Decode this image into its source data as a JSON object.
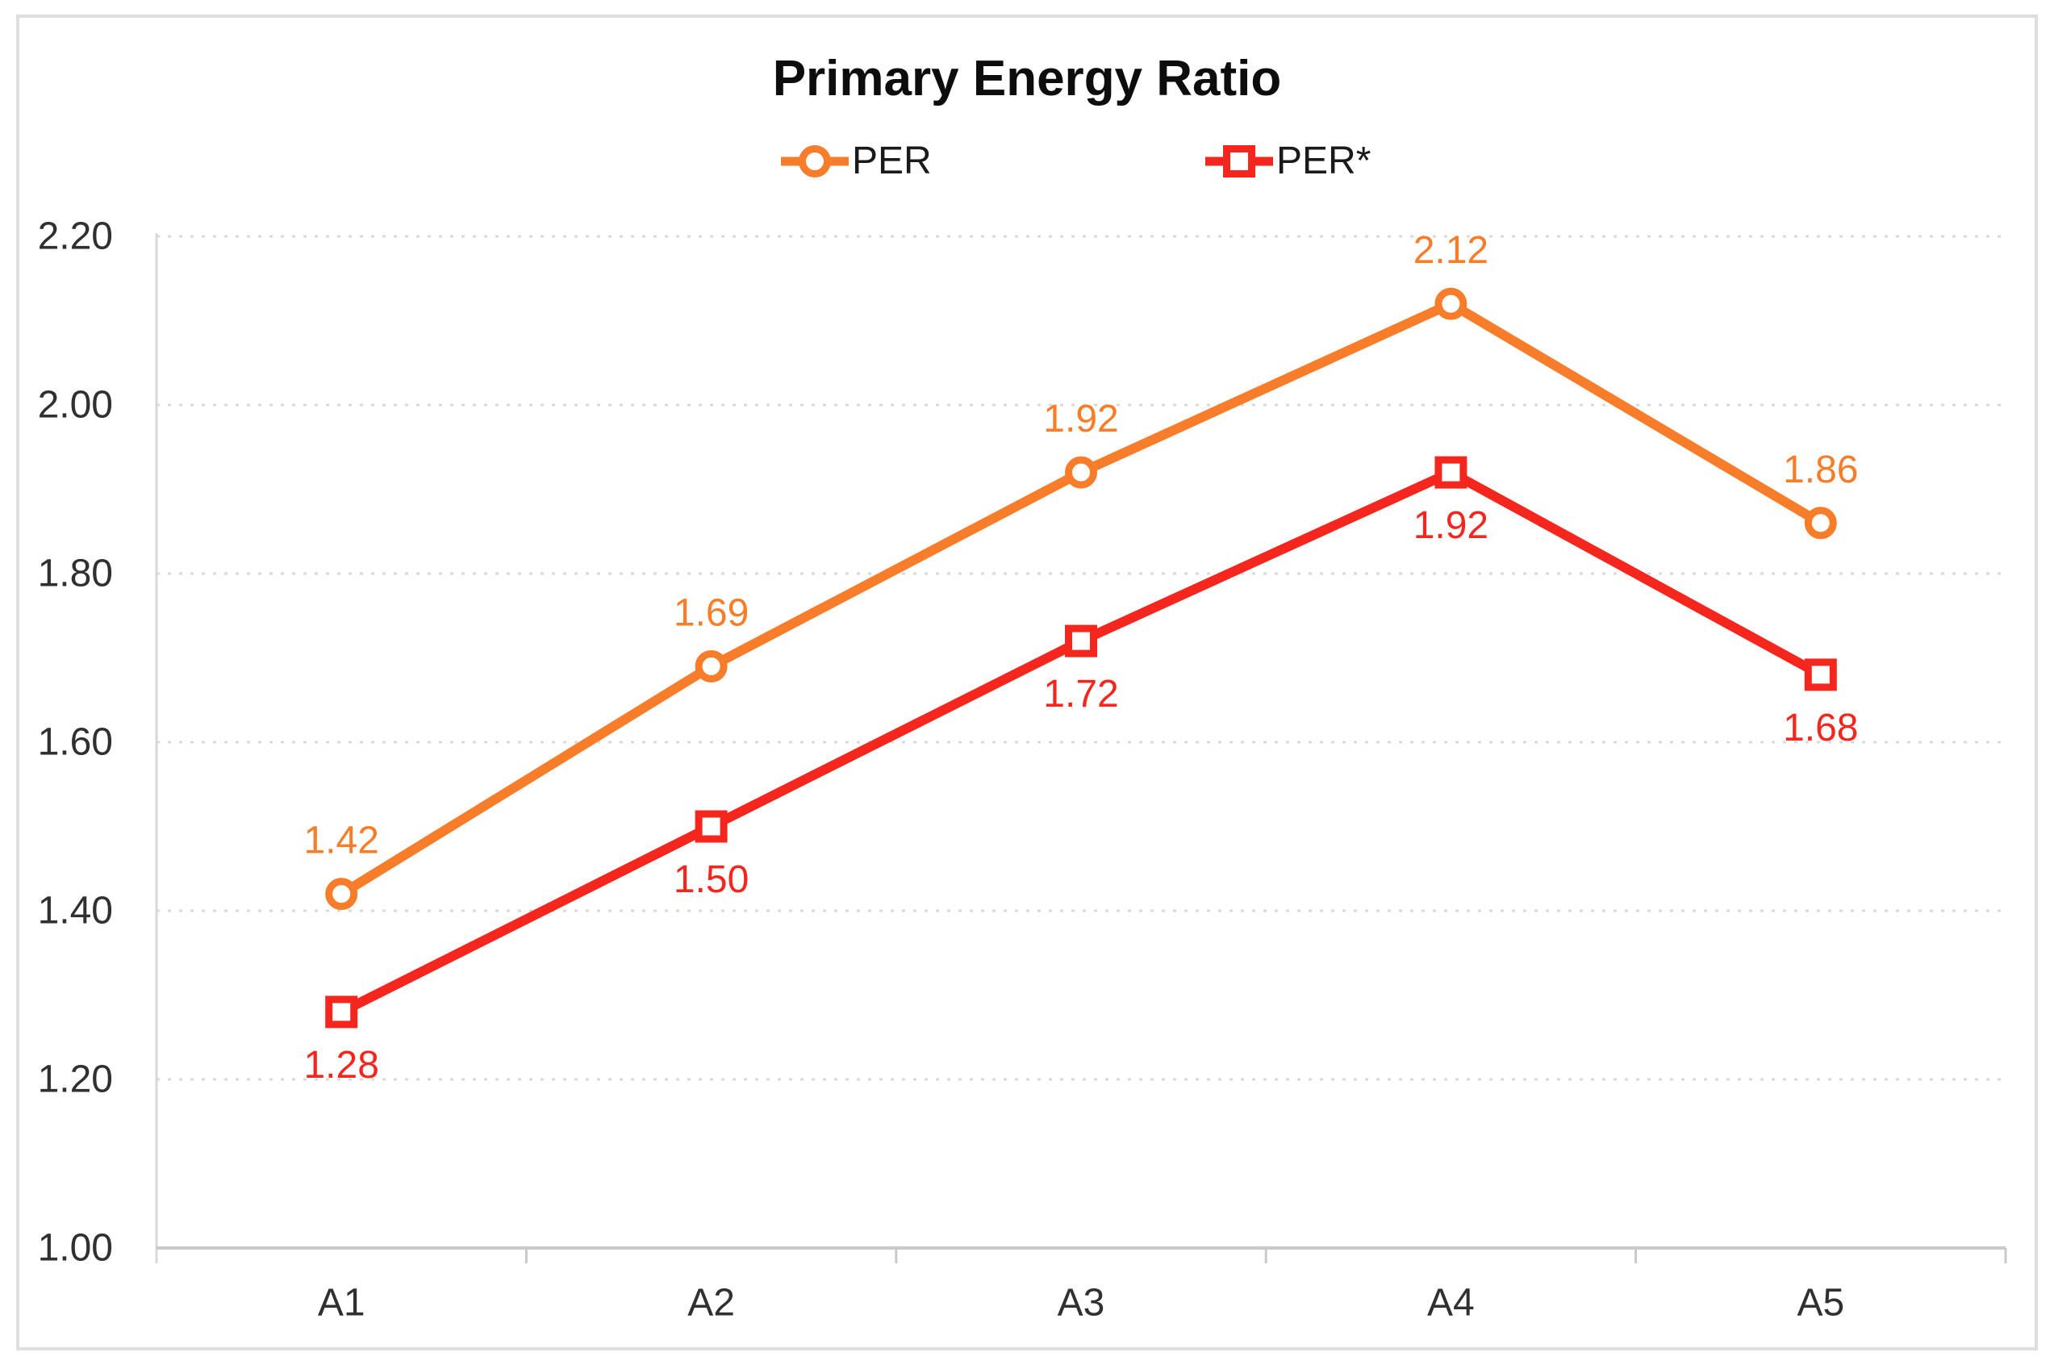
{
  "chart_data": {
    "type": "line",
    "title": "Primary Energy Ratio",
    "categories": [
      "A1",
      "A2",
      "A3",
      "A4",
      "A5"
    ],
    "series": [
      {
        "name": "PER",
        "marker": "circle",
        "color": "#f87d2a",
        "values": [
          1.42,
          1.69,
          1.92,
          2.12,
          1.86
        ],
        "labels": [
          "1.42",
          "1.69",
          "1.92",
          "2.12",
          "1.86"
        ],
        "label_position": "above"
      },
      {
        "name": "PER*",
        "marker": "square",
        "color": "#f5261d",
        "values": [
          1.28,
          1.5,
          1.72,
          1.92,
          1.68
        ],
        "labels": [
          "1.28",
          "1.50",
          "1.72",
          "1.92",
          "1.68"
        ],
        "label_position": "below"
      }
    ],
    "y_axis": {
      "min": 1.0,
      "max": 2.2,
      "step": 0.2,
      "tick_labels": [
        "1.00",
        "1.20",
        "1.40",
        "1.60",
        "1.80",
        "2.00",
        "2.20"
      ]
    },
    "x_axis": {
      "tick_labels": [
        "A1",
        "A2",
        "A3",
        "A4",
        "A5"
      ]
    },
    "legend_position": "top-center",
    "grid": "horizontal-dotted",
    "colors": {
      "gridline": "#d9d9d9",
      "axis_line": "#c9c9c9",
      "tick_text": "#303030",
      "title_text": "#0d0d0d",
      "legend_text": "#1a1a1a",
      "background": "#ffffff"
    }
  }
}
